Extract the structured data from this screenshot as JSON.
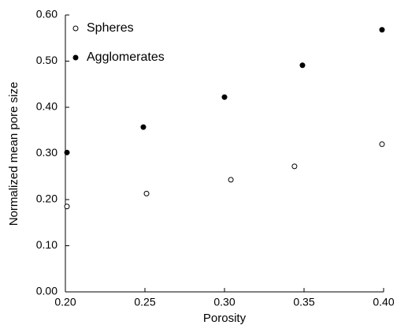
{
  "chart_data": {
    "type": "scatter",
    "xlabel": "Porosity",
    "ylabel": "Normalized mean pore size",
    "series": [
      {
        "name": "Spheres",
        "color": "#ffffff",
        "x": [
          0.201,
          0.251,
          0.304,
          0.344,
          0.399
        ],
        "values": [
          0.185,
          0.213,
          0.243,
          0.272,
          0.32
        ]
      },
      {
        "name": "Agglomerates",
        "color": "#000000",
        "x": [
          0.201,
          0.249,
          0.3,
          0.349,
          0.399
        ],
        "values": [
          0.302,
          0.357,
          0.422,
          0.491,
          0.568
        ]
      }
    ],
    "xlim": [
      0.2,
      0.4
    ],
    "xticks": [
      {
        "value": 0.2,
        "label": "0.20"
      },
      {
        "value": 0.25,
        "label": "0.25"
      },
      {
        "value": 0.3,
        "label": "0.30"
      },
      {
        "value": 0.35,
        "label": "0.35"
      },
      {
        "value": 0.4,
        "label": "0.40"
      }
    ],
    "ylim": [
      0,
      0.6
    ],
    "yticks": [
      {
        "value": 0,
        "label": "0.00"
      },
      {
        "value": 0.1,
        "label": "0.10"
      },
      {
        "value": 0.2,
        "label": "0.20"
      },
      {
        "value": 0.3,
        "label": "0.30"
      },
      {
        "value": 0.4,
        "label": "0.40"
      },
      {
        "value": 0.5,
        "label": "0.50"
      },
      {
        "value": 0.6,
        "label": "0.60"
      }
    ],
    "legend": "upper-left",
    "grid": false
  }
}
